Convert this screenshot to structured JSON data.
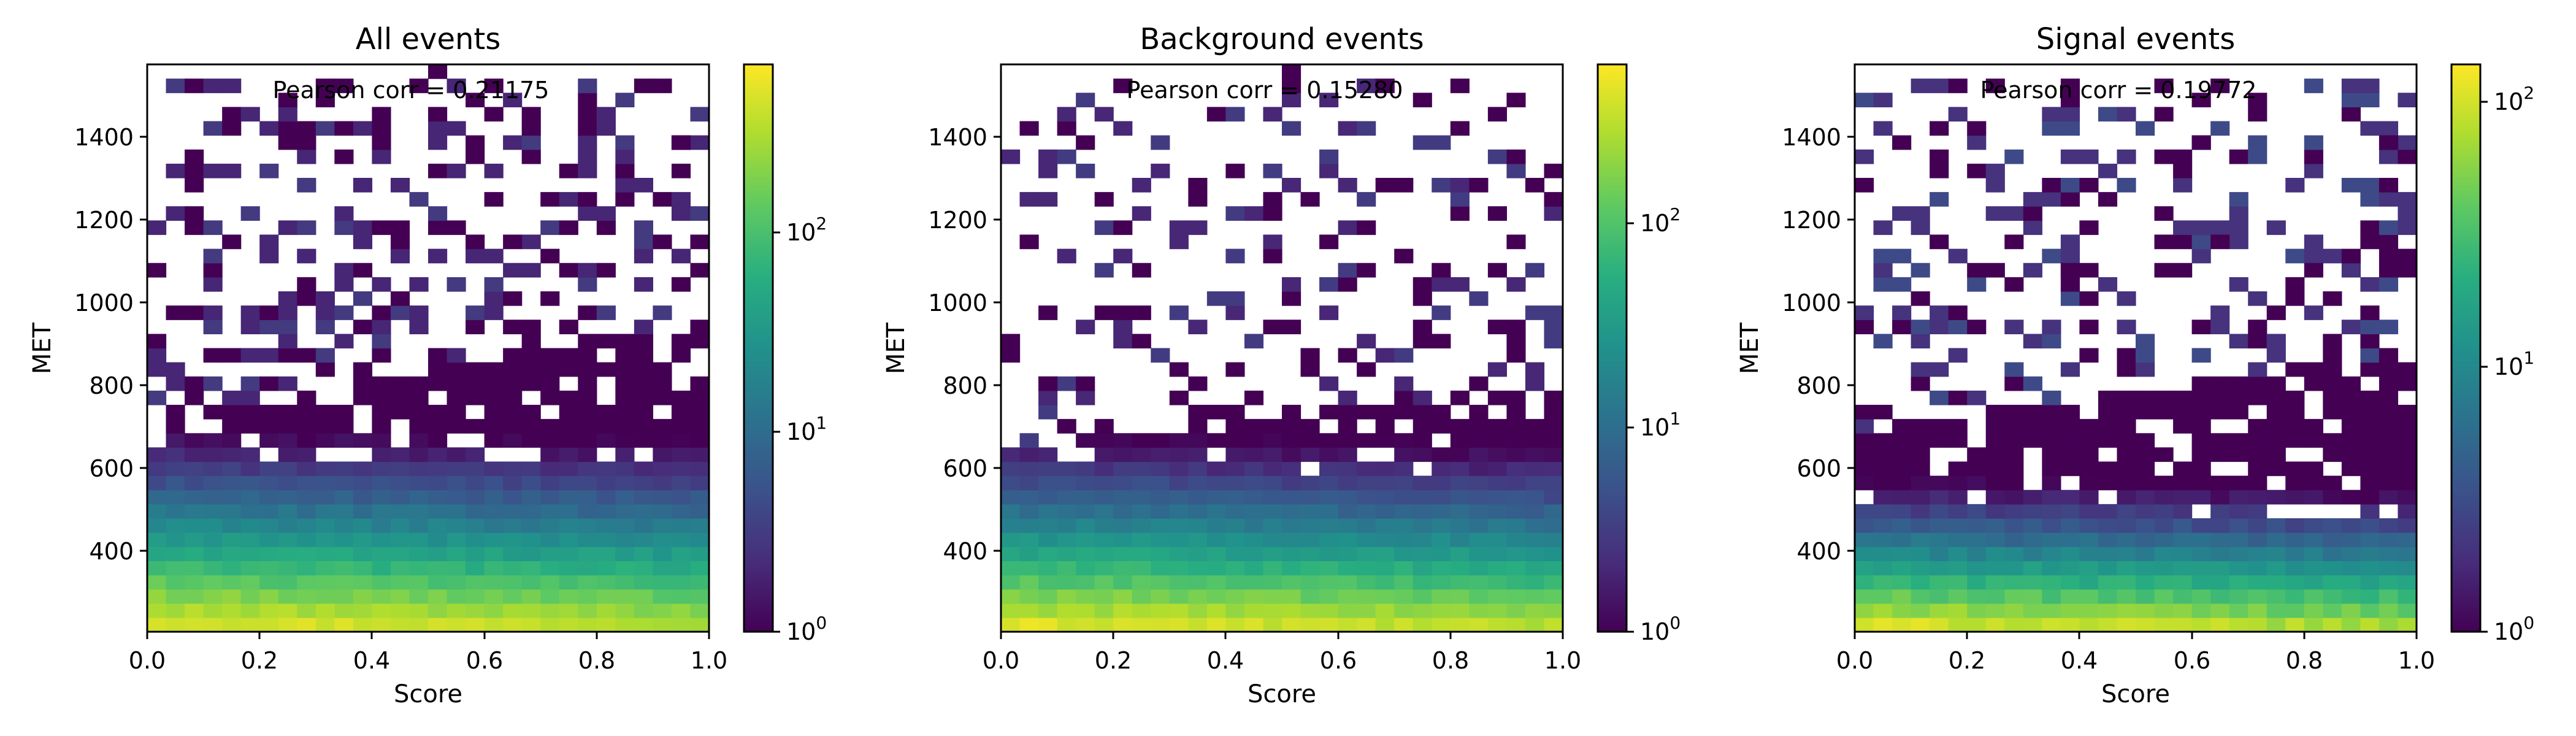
{
  "chart_data": [
    {
      "type": "heatmap",
      "title": "All events",
      "xlabel": "Score",
      "ylabel": "MET",
      "annotation": "Pearson corr = 0.21175",
      "xlim": [
        0.0,
        1.0
      ],
      "ylim": [
        200,
        1570
      ],
      "xticks": [
        "0.0",
        "0.2",
        "0.4",
        "0.6",
        "0.8",
        "1.0"
      ],
      "yticks": [
        "400",
        "600",
        "800",
        "1000",
        "1200",
        "1400"
      ],
      "colorbar": {
        "scale": "log",
        "range": [
          1,
          700
        ],
        "ticks": [
          "10^0",
          "10^1",
          "10^2"
        ]
      },
      "grid": false,
      "bins": {
        "x_count": 30,
        "y_count": 40,
        "peak_count": 650,
        "tail_met": 700,
        "slope": 0.38,
        "sparse_fraction": 0.34
      },
      "sparse_points": [
        [
          0.15,
          1135
        ],
        [
          0.43,
          1165
        ],
        [
          0.58,
          1135
        ],
        [
          0.65,
          1135
        ],
        [
          0.52,
          1555
        ],
        [
          0.59,
          1385
        ],
        [
          0.94,
          1385
        ],
        [
          0.96,
          1385
        ],
        [
          0.28,
          1035
        ],
        [
          0.38,
          1085
        ],
        [
          0.83,
          1085
        ],
        [
          0.91,
          1135
        ]
      ]
    },
    {
      "type": "heatmap",
      "title": "Background events",
      "xlabel": "Score",
      "ylabel": "MET",
      "annotation": "Pearson corr = 0.15280",
      "xlim": [
        0.0,
        1.0
      ],
      "ylim": [
        200,
        1570
      ],
      "xticks": [
        "0.0",
        "0.2",
        "0.4",
        "0.6",
        "0.8",
        "1.0"
      ],
      "yticks": [
        "400",
        "600",
        "800",
        "1000",
        "1200",
        "1400"
      ],
      "colorbar": {
        "scale": "log",
        "range": [
          1,
          600
        ],
        "ticks": [
          "10^0",
          "10^1",
          "10^2"
        ]
      },
      "grid": false,
      "bins": {
        "x_count": 30,
        "y_count": 40,
        "peak_count": 550,
        "tail_met": 650,
        "slope": 0.22,
        "sparse_fraction": 0.22
      },
      "sparse_points": [
        [
          0.52,
          1555
        ],
        [
          0.58,
          1135
        ],
        [
          0.91,
          1135
        ],
        [
          0.24,
          885
        ],
        [
          0.75,
          885
        ],
        [
          0.91,
          855
        ],
        [
          0.08,
          785
        ],
        [
          0.16,
          785
        ]
      ]
    },
    {
      "type": "heatmap",
      "title": "Signal events",
      "xlabel": "Score",
      "ylabel": "MET",
      "annotation": "Pearson corr = 0.19772",
      "xlim": [
        0.0,
        1.0
      ],
      "ylim": [
        200,
        1570
      ],
      "xticks": [
        "0.0",
        "0.2",
        "0.4",
        "0.6",
        "0.8",
        "1.0"
      ],
      "yticks": [
        "400",
        "600",
        "800",
        "1000",
        "1200",
        "1400"
      ],
      "colorbar": {
        "scale": "log",
        "range": [
          1,
          140
        ],
        "ticks": [
          "10^0",
          "10^1",
          "10^2"
        ]
      },
      "grid": false,
      "bins": {
        "x_count": 30,
        "y_count": 40,
        "peak_count": 130,
        "tail_met": 680,
        "slope": 0.3,
        "sparse_fraction": 0.3
      },
      "sparse_points": [
        [
          0.15,
          1135
        ],
        [
          0.43,
          1165
        ],
        [
          0.65,
          1135
        ],
        [
          0.6,
          1385
        ],
        [
          0.94,
          1385
        ],
        [
          0.96,
          1385
        ],
        [
          0.28,
          1035
        ],
        [
          0.38,
          1085
        ],
        [
          0.83,
          1085
        ],
        [
          0.91,
          1135
        ]
      ]
    }
  ]
}
